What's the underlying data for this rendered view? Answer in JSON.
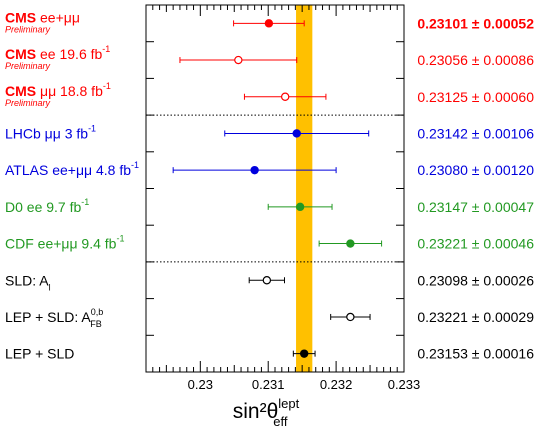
{
  "chart_data": {
    "type": "scatter",
    "xlabel": "sin²θ",
    "xlabel_sup": "lept",
    "xlabel_sub": "eff",
    "xlim": [
      0.2292,
      0.233
    ],
    "xticks": [
      0.23,
      0.231,
      0.232,
      0.233
    ],
    "xtick_labels": [
      "0.23",
      "0.231",
      "0.232",
      "0.233"
    ],
    "band": {
      "low": 0.23141,
      "high": 0.23165,
      "color": "#ffc000"
    },
    "grid": false,
    "separators_after_row": [
      2,
      6
    ],
    "rows": [
      {
        "label": "CMS ee+μμ",
        "label_main": "CMS",
        "label_rest": " ee+μμ",
        "sup": "",
        "sub": "",
        "sublabel": "Preliminary",
        "value": 0.23101,
        "error": 0.00052,
        "display": "0.23101 ± 0.00052",
        "color": "#ff0000",
        "marker": "filled",
        "bold_value": true
      },
      {
        "label": "CMS ee 19.6 fb⁻¹",
        "label_main": "CMS",
        "label_rest": " ee 19.6 fb",
        "sup": "-1",
        "sub": "",
        "sublabel": "Preliminary",
        "value": 0.23056,
        "error": 0.00086,
        "display": "0.23056 ± 0.00086",
        "color": "#ff0000",
        "marker": "open",
        "bold_value": false
      },
      {
        "label": "CMS μμ 18.8 fb⁻¹",
        "label_main": "CMS",
        "label_rest": " μμ 18.8 fb",
        "sup": "-1",
        "sub": "",
        "sublabel": "Preliminary",
        "value": 0.23125,
        "error": 0.0006,
        "display": "0.23125 ± 0.00060",
        "color": "#ff0000",
        "marker": "open",
        "bold_value": false
      },
      {
        "label": "LHCb μμ 3 fb⁻¹",
        "label_main": "",
        "label_rest": "LHCb μμ 3 fb",
        "sup": "-1",
        "sub": "",
        "sublabel": "",
        "value": 0.23142,
        "error": 0.00106,
        "display": "0.23142 ± 0.00106",
        "color": "#0000dd",
        "marker": "filled",
        "bold_value": false
      },
      {
        "label": "ATLAS ee+μμ 4.8 fb⁻¹",
        "label_main": "",
        "label_rest": "ATLAS ee+μμ 4.8 fb",
        "sup": "-1",
        "sub": "",
        "sublabel": "",
        "value": 0.2308,
        "error": 0.0012,
        "display": "0.23080 ± 0.00120",
        "color": "#0000dd",
        "marker": "filled",
        "bold_value": false
      },
      {
        "label": "D0 ee 9.7 fb⁻¹",
        "label_main": "",
        "label_rest": "D0 ee 9.7 fb",
        "sup": "-1",
        "sub": "",
        "sublabel": "",
        "value": 0.23147,
        "error": 0.00047,
        "display": "0.23147 ± 0.00047",
        "color": "#229922",
        "marker": "filled",
        "bold_value": false
      },
      {
        "label": "CDF ee+μμ 9.4 fb⁻¹",
        "label_main": "",
        "label_rest": "CDF ee+μμ 9.4 fb",
        "sup": "-1",
        "sub": "",
        "sublabel": "",
        "value": 0.23221,
        "error": 0.00046,
        "display": "0.23221 ± 0.00046",
        "color": "#229922",
        "marker": "filled",
        "bold_value": false
      },
      {
        "label": "SLD: A_l",
        "label_main": "",
        "label_rest": "SLD: A",
        "sup": "",
        "sub": "l",
        "sublabel": "",
        "value": 0.23098,
        "error": 0.00026,
        "display": "0.23098 ± 0.00026",
        "color": "#000000",
        "marker": "open",
        "bold_value": false
      },
      {
        "label": "LEP + SLD: A_FB^0,b",
        "label_main": "",
        "label_rest": "LEP + SLD: A",
        "sup": "0,b",
        "sub": "FB",
        "sublabel": "",
        "value": 0.23221,
        "error": 0.00029,
        "display": "0.23221 ± 0.00029",
        "color": "#000000",
        "marker": "open",
        "bold_value": false
      },
      {
        "label": "LEP + SLD",
        "label_main": "",
        "label_rest": "LEP + SLD",
        "sup": "",
        "sub": "",
        "sublabel": "",
        "value": 0.23153,
        "error": 0.00016,
        "display": "0.23153 ± 0.00016",
        "color": "#000000",
        "marker": "filled",
        "bold_value": false
      }
    ]
  }
}
